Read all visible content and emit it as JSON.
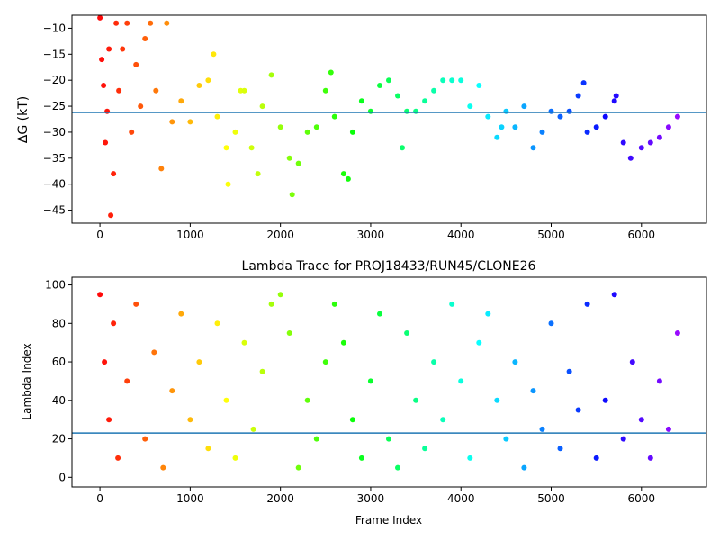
{
  "chart_data": [
    {
      "type": "scatter",
      "title": "",
      "xlabel": "",
      "ylabel": "ΔG (kT)",
      "xlim": [
        -310,
        6720
      ],
      "ylim": [
        -47.5,
        -7.5
      ],
      "xticks": [
        0,
        1000,
        2000,
        3000,
        4000,
        5000,
        6000
      ],
      "yticks": [
        -45,
        -40,
        -35,
        -30,
        -25,
        -20,
        -15,
        -10
      ],
      "hline": -26.2,
      "hline_color": "#1f77b4",
      "colormap": "rainbow",
      "grid": false,
      "legend": "none",
      "series": [
        {
          "x": [
            0,
            20,
            40,
            60,
            80,
            100,
            120,
            150,
            180,
            210,
            250,
            300,
            350,
            400,
            450,
            500,
            560,
            620,
            680,
            740,
            800,
            900,
            1000,
            1100,
            1200,
            1260,
            1300,
            1400,
            1420,
            1500,
            1560,
            1600,
            1680,
            1750,
            1800,
            1900,
            2000,
            2100,
            2130,
            2200,
            2300,
            2400,
            2500,
            2560,
            2600,
            2700,
            2750,
            2800,
            2900,
            3000,
            3100,
            3200,
            3300,
            3350,
            3400,
            3500,
            3600,
            3700,
            3800,
            3900,
            4000,
            4100,
            4200,
            4300,
            4400,
            4450,
            4500,
            4600,
            4700,
            4800,
            4900,
            5000,
            5100,
            5200,
            5300,
            5360,
            5400,
            5500,
            5600,
            5700,
            5720,
            5800,
            5880,
            6000,
            6100,
            6200,
            6300,
            6400
          ],
          "y": [
            -8,
            -16,
            -21,
            -32,
            -26,
            -14,
            -46,
            -38,
            -9,
            -22,
            -14,
            -9,
            -30,
            -17,
            -25,
            -12,
            -9,
            -22,
            -37,
            -9,
            -28,
            -24,
            -28,
            -21,
            -20,
            -15,
            -27,
            -33,
            -40,
            -30,
            -22,
            -22,
            -33,
            -38,
            -25,
            -19,
            -29,
            -35,
            -42,
            -36,
            -30,
            -29,
            -22,
            -18.5,
            -27,
            -38,
            -39,
            -30,
            -24,
            -26,
            -21,
            -20,
            -23,
            -33,
            -26,
            -26,
            -24,
            -22,
            -20,
            -20,
            -20,
            -25,
            -21,
            -27,
            -31,
            -29,
            -26,
            -29,
            -25,
            -33,
            -30,
            -26,
            -27,
            -26,
            -23,
            -20.5,
            -30,
            -29,
            -27,
            -24,
            -23,
            -32,
            -35,
            -33,
            -32,
            -31,
            -29,
            -27
          ]
        }
      ]
    },
    {
      "type": "scatter",
      "title": "Lambda Trace for PROJ18433/RUN45/CLONE26",
      "xlabel": "Frame Index",
      "ylabel": "Lambda Index",
      "xlim": [
        -310,
        6720
      ],
      "ylim": [
        -5,
        104
      ],
      "xticks": [
        0,
        1000,
        2000,
        3000,
        4000,
        5000,
        6000
      ],
      "yticks": [
        0,
        20,
        40,
        60,
        80,
        100
      ],
      "hline": 23,
      "hline_color": "#1f77b4",
      "colormap": "rainbow",
      "grid": false,
      "legend": "none",
      "series": [
        {
          "x": [
            0,
            50,
            100,
            150,
            200,
            300,
            400,
            500,
            600,
            700,
            800,
            900,
            1000,
            1100,
            1200,
            1300,
            1400,
            1500,
            1600,
            1700,
            1800,
            1900,
            2000,
            2100,
            2200,
            2300,
            2400,
            2500,
            2600,
            2700,
            2800,
            2900,
            3000,
            3100,
            3200,
            3300,
            3400,
            3500,
            3600,
            3700,
            3800,
            3900,
            4000,
            4100,
            4200,
            4300,
            4400,
            4500,
            4600,
            4700,
            4800,
            4900,
            5000,
            5100,
            5200,
            5300,
            5400,
            5500,
            5600,
            5700,
            5800,
            5900,
            6000,
            6100,
            6200,
            6300,
            6400
          ],
          "y": [
            95,
            60,
            30,
            80,
            10,
            50,
            90,
            20,
            65,
            5,
            45,
            85,
            30,
            60,
            15,
            80,
            40,
            10,
            70,
            25,
            55,
            90,
            95,
            75,
            5,
            40,
            20,
            60,
            90,
            70,
            30,
            10,
            50,
            85,
            20,
            5,
            75,
            40,
            15,
            60,
            30,
            90,
            50,
            10,
            70,
            85,
            40,
            20,
            60,
            5,
            45,
            25,
            80,
            15,
            55,
            35,
            90,
            10,
            40,
            95,
            20,
            60,
            30,
            10,
            50,
            25,
            75
          ]
        }
      ]
    }
  ]
}
